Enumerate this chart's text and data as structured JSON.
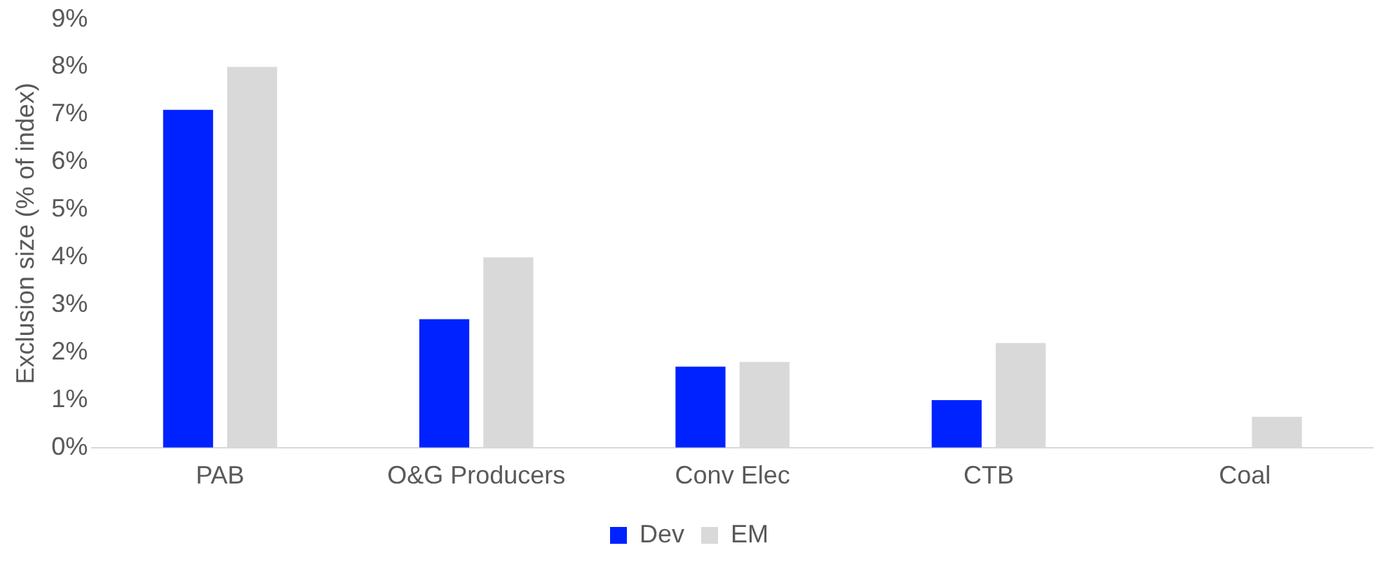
{
  "chart_data": {
    "type": "bar",
    "ylabel": "Exclusion size (% of index)",
    "categories": [
      "PAB",
      "O&G Producers",
      "Conv Elec",
      "CTB",
      "Coal"
    ],
    "series": [
      {
        "name": "Dev",
        "color": "#0022ff",
        "values": [
          7.1,
          2.7,
          1.7,
          1.0,
          0
        ]
      },
      {
        "name": "EM",
        "color": "#d9d9d9",
        "values": [
          8.0,
          4.0,
          1.8,
          2.2,
          0.65
        ]
      }
    ],
    "ylim": [
      0,
      9
    ],
    "yticks": [
      {
        "value": 0,
        "label": "0%"
      },
      {
        "value": 1,
        "label": "1%"
      },
      {
        "value": 2,
        "label": "2%"
      },
      {
        "value": 3,
        "label": "3%"
      },
      {
        "value": 4,
        "label": "4%"
      },
      {
        "value": 5,
        "label": "5%"
      },
      {
        "value": 6,
        "label": "6%"
      },
      {
        "value": 7,
        "label": "7%"
      },
      {
        "value": 8,
        "label": "8%"
      },
      {
        "value": 9,
        "label": "9%"
      }
    ],
    "grid": false,
    "legend": "bottom"
  }
}
